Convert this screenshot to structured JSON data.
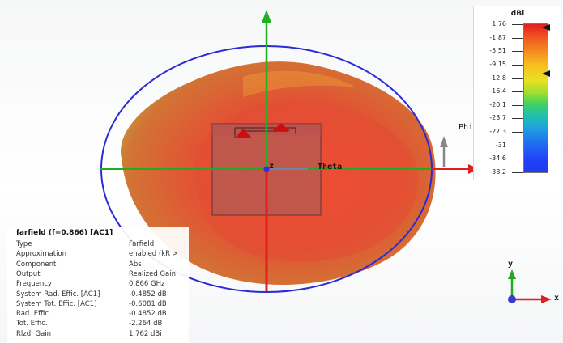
{
  "scene": {
    "axis_labels": {
      "theta": "Theta",
      "phi": "Phi",
      "z": "z"
    },
    "colors": {
      "pattern_outer": "#c6a53d",
      "pattern_inner": "#e84a32",
      "ring": "#2b2bd6",
      "axis_vertical": "#e02020",
      "axis_x_green": "#22aa22",
      "axis_x_red": "#e02020",
      "axis_up_green": "#22b022",
      "antenna": "#b05050"
    }
  },
  "legend": {
    "unit": "dBi",
    "ticks": [
      "1.76",
      "-1.87",
      "-5.51",
      "-9.15",
      "-12.8",
      "-16.4",
      "-20.1",
      "-23.7",
      "-27.3",
      "-31",
      "-34.6",
      "-38.2"
    ]
  },
  "info": {
    "title": "farfield (f=0.866) [AC1]",
    "rows": [
      {
        "key": "Type",
        "value": "Farfield"
      },
      {
        "key": "Approximation",
        "value": "enabled (kR >"
      },
      {
        "key": "Component",
        "value": "Abs"
      },
      {
        "key": "Output",
        "value": "Realized Gain"
      },
      {
        "key": "Frequency",
        "value": "0.866 GHz"
      },
      {
        "key": "System Rad. Effic. [AC1]",
        "value": "-0.4852 dB"
      },
      {
        "key": "System Tot. Effic. [AC1]",
        "value": "-0.6081 dB"
      },
      {
        "key": "Rad. Effic.",
        "value": "-0.4852 dB"
      },
      {
        "key": "Tot. Effic.",
        "value": "-2.264 dB"
      },
      {
        "key": "Rlzd. Gain",
        "value": "1.762 dBi"
      }
    ]
  },
  "triad": {
    "y": "y",
    "x": "x"
  }
}
